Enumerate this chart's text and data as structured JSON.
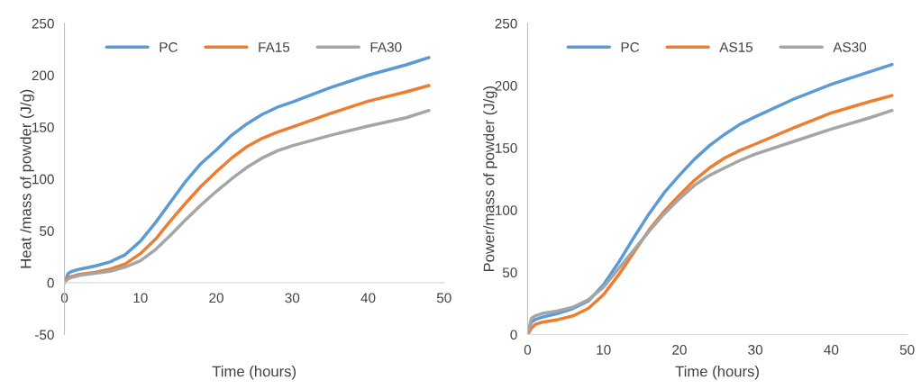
{
  "chart_data": [
    {
      "type": "line",
      "xlabel": "Time (hours)",
      "ylabel": "Heat /mass of powder (J/g)",
      "xlim": [
        0,
        50
      ],
      "ylim": [
        -50,
        250
      ],
      "xticks": [
        0,
        10,
        20,
        30,
        40,
        50
      ],
      "yticks": [
        -50,
        0,
        50,
        100,
        150,
        200,
        250
      ],
      "legend": "top",
      "grid": false,
      "x": [
        0,
        0.5,
        1,
        2,
        4,
        6,
        8,
        10,
        12,
        14,
        16,
        18,
        20,
        22,
        24,
        26,
        28,
        30,
        35,
        40,
        45,
        48
      ],
      "series": [
        {
          "name": "PC",
          "color": "#5b9bd5",
          "values": [
            0,
            9,
            11,
            13,
            16,
            20,
            27,
            40,
            58,
            78,
            98,
            115,
            128,
            142,
            153,
            162,
            169,
            174,
            188,
            200,
            210,
            217
          ]
        },
        {
          "name": "FA15",
          "color": "#ed7d31",
          "values": [
            0,
            5,
            6,
            8,
            10,
            13,
            18,
            28,
            42,
            60,
            77,
            93,
            107,
            120,
            131,
            139,
            145,
            150,
            163,
            175,
            184,
            190
          ]
        },
        {
          "name": "FA30",
          "color": "#a5a5a5",
          "values": [
            0,
            4,
            5,
            7,
            9,
            11,
            15,
            21,
            32,
            46,
            61,
            75,
            88,
            100,
            111,
            120,
            127,
            132,
            142,
            151,
            159,
            166
          ]
        }
      ]
    },
    {
      "type": "line",
      "xlabel": "Time (hours)",
      "ylabel": "Power/mass of powder (J/g)",
      "xlim": [
        0,
        50
      ],
      "ylim": [
        0,
        250
      ],
      "xticks": [
        0,
        10,
        20,
        30,
        40,
        50
      ],
      "yticks": [
        0,
        50,
        100,
        150,
        200,
        250
      ],
      "legend": "top",
      "grid": false,
      "x": [
        0,
        0.5,
        1,
        2,
        4,
        6,
        8,
        10,
        12,
        14,
        16,
        18,
        20,
        22,
        24,
        26,
        28,
        30,
        35,
        40,
        45,
        48
      ],
      "series": [
        {
          "name": "PC",
          "color": "#5b9bd5",
          "values": [
            0,
            10,
            12,
            14,
            17,
            21,
            27,
            40,
            58,
            78,
            97,
            114,
            128,
            141,
            152,
            161,
            169,
            175,
            189,
            201,
            211,
            217
          ]
        },
        {
          "name": "AS15",
          "color": "#ed7d31",
          "values": [
            0,
            5,
            8,
            10,
            12,
            15,
            21,
            32,
            48,
            66,
            84,
            99,
            112,
            124,
            134,
            142,
            148,
            153,
            166,
            178,
            187,
            192
          ]
        },
        {
          "name": "AS30",
          "color": "#a5a5a5",
          "values": [
            0,
            13,
            15,
            17,
            19,
            22,
            28,
            38,
            53,
            68,
            83,
            97,
            109,
            120,
            128,
            134,
            140,
            145,
            155,
            165,
            174,
            180
          ]
        }
      ]
    }
  ]
}
